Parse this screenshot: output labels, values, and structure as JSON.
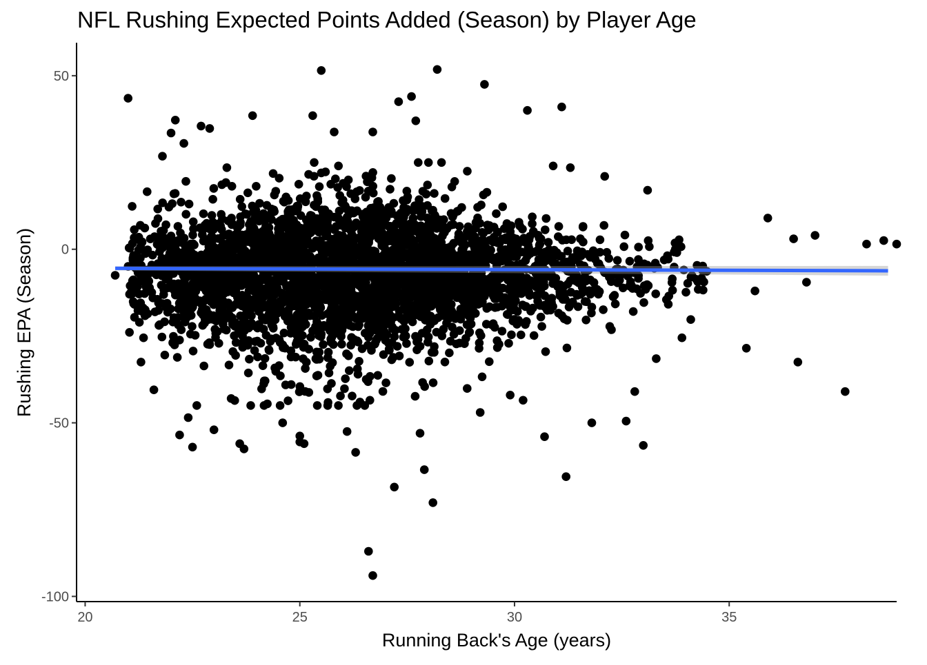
{
  "chart_data": {
    "type": "scatter",
    "title": "NFL Rushing Expected Points Added (Season) by Player Age",
    "xlabel": "Running Back's Age (years)",
    "ylabel": "Rushing EPA (Season)",
    "xlim": [
      19.8,
      38.9
    ],
    "ylim": [
      -101.5,
      59.5
    ],
    "xticks": [
      20,
      25,
      30,
      35
    ],
    "yticks": [
      50,
      0,
      -50,
      -100
    ],
    "xtick_labels": [
      "20",
      "25",
      "30",
      "35"
    ],
    "ytick_labels": [
      "50",
      "0",
      "-50",
      "-100"
    ],
    "grid": false,
    "point_color": "#000000",
    "trend_color": "#3366ff",
    "trend": {
      "x": [
        20.7,
        38.7
      ],
      "y": [
        -5.5,
        -6.2
      ]
    },
    "outliers": [
      [
        20.7,
        -7.5
      ],
      [
        21.0,
        43.5
      ],
      [
        21.3,
        -32.5
      ],
      [
        21.6,
        -40.5
      ],
      [
        21.8,
        26.8
      ],
      [
        22.0,
        33.5
      ],
      [
        22.1,
        37.2
      ],
      [
        22.2,
        -53.5
      ],
      [
        22.3,
        30.5
      ],
      [
        22.4,
        -48.5
      ],
      [
        22.5,
        -57.0
      ],
      [
        22.6,
        -45.0
      ],
      [
        22.7,
        35.5
      ],
      [
        22.9,
        34.8
      ],
      [
        23.0,
        -52.0
      ],
      [
        23.3,
        23.5
      ],
      [
        23.4,
        -43.0
      ],
      [
        23.6,
        -56.0
      ],
      [
        23.7,
        -57.5
      ],
      [
        23.9,
        38.5
      ],
      [
        24.6,
        -50.0
      ],
      [
        25.0,
        -55.5
      ],
      [
        25.0,
        -53.8
      ],
      [
        25.1,
        -56.0
      ],
      [
        25.3,
        38.5
      ],
      [
        25.5,
        51.5
      ],
      [
        25.8,
        33.8
      ],
      [
        25.9,
        24.0
      ],
      [
        26.1,
        -52.5
      ],
      [
        26.3,
        -58.5
      ],
      [
        26.4,
        -44.0
      ],
      [
        26.6,
        -87.0
      ],
      [
        26.7,
        -94.0
      ],
      [
        26.7,
        33.8
      ],
      [
        27.2,
        -68.5
      ],
      [
        27.3,
        42.5
      ],
      [
        27.6,
        44.0
      ],
      [
        27.7,
        37.0
      ],
      [
        27.8,
        -53.0
      ],
      [
        27.9,
        -63.5
      ],
      [
        28.1,
        -73.0
      ],
      [
        28.2,
        51.8
      ],
      [
        28.3,
        25.0
      ],
      [
        28.9,
        22.5
      ],
      [
        29.2,
        -47.0
      ],
      [
        29.3,
        47.5
      ],
      [
        29.9,
        -42.0
      ],
      [
        30.2,
        -43.5
      ],
      [
        30.3,
        40.0
      ],
      [
        30.7,
        -54.0
      ],
      [
        30.9,
        24.0
      ],
      [
        31.1,
        41.0
      ],
      [
        31.2,
        -65.5
      ],
      [
        31.3,
        23.5
      ],
      [
        31.8,
        -50.0
      ],
      [
        32.1,
        21.0
      ],
      [
        32.6,
        -49.5
      ],
      [
        32.8,
        -41.0
      ],
      [
        33.0,
        -56.5
      ],
      [
        33.1,
        17.0
      ],
      [
        33.3,
        -31.5
      ],
      [
        33.9,
        -25.5
      ],
      [
        35.4,
        -28.5
      ],
      [
        35.6,
        -12.0
      ],
      [
        35.9,
        9.0
      ],
      [
        36.5,
        3.0
      ],
      [
        36.6,
        -32.5
      ],
      [
        36.8,
        -9.5
      ],
      [
        37.0,
        4.0
      ],
      [
        37.7,
        -41.0
      ],
      [
        38.2,
        1.5
      ],
      [
        38.6,
        2.5
      ],
      [
        38.9,
        1.5
      ]
    ],
    "cloud": {
      "x_center": 26.0,
      "x_spread": 3.0,
      "x_min": 21.0,
      "x_max": 34.5,
      "y_center": -6.0,
      "y_spread": 12.0,
      "point_count": 3300
    }
  }
}
